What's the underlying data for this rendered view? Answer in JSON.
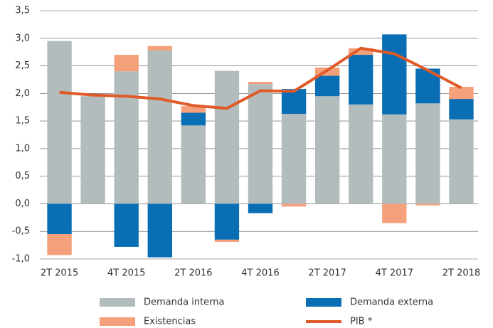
{
  "chart_data": {
    "type": "bar",
    "categories": [
      "2T 2015",
      null,
      "4T 2015",
      null,
      "2T 2016",
      null,
      "4T 2016",
      null,
      "2T 2017",
      null,
      "4T 2017",
      null,
      "2T 2018"
    ],
    "stacked": true,
    "series": [
      {
        "name": "Demanda interna",
        "color": "#b3bcbd",
        "values": [
          2.95,
          1.95,
          2.4,
          2.78,
          1.42,
          2.41,
          2.17,
          1.63,
          1.95,
          1.8,
          1.62,
          1.82,
          1.53
        ]
      },
      {
        "name": "Demanda externa",
        "color": "#0a6eb4",
        "values": [
          -0.55,
          0,
          -0.78,
          -0.97,
          0.23,
          -0.65,
          -0.17,
          0.45,
          0.37,
          0.9,
          1.45,
          0.63,
          0.37
        ]
      },
      {
        "name": "Existencias",
        "color": "#f4a07a",
        "values": [
          -0.38,
          0,
          0.3,
          0.08,
          0.12,
          -0.04,
          0.04,
          -0.05,
          0.15,
          0.12,
          -0.35,
          -0.03,
          0.22
        ]
      },
      {
        "name": "PIB *",
        "color": "#e05a28",
        "type": "line",
        "values": [
          2.02,
          1.97,
          1.95,
          1.9,
          1.78,
          1.73,
          2.05,
          2.04,
          2.42,
          2.82,
          2.72,
          2.42,
          2.1
        ]
      }
    ],
    "ylim": [
      -1,
      3.5
    ],
    "yticks": [
      {
        "value": -1,
        "label": "-1,0"
      },
      {
        "value": -0.5,
        "label": "-0,5"
      },
      {
        "value": 0,
        "label": "0,0"
      },
      {
        "value": 0.5,
        "label": "0,5"
      },
      {
        "value": 1,
        "label": "1,0"
      },
      {
        "value": 1.5,
        "label": "1,5"
      },
      {
        "value": 2,
        "label": "2,0"
      },
      {
        "value": 2.5,
        "label": "2,5"
      },
      {
        "value": 3,
        "label": "3,0"
      },
      {
        "value": 3.5,
        "label": "3,5"
      }
    ],
    "grid": true
  }
}
